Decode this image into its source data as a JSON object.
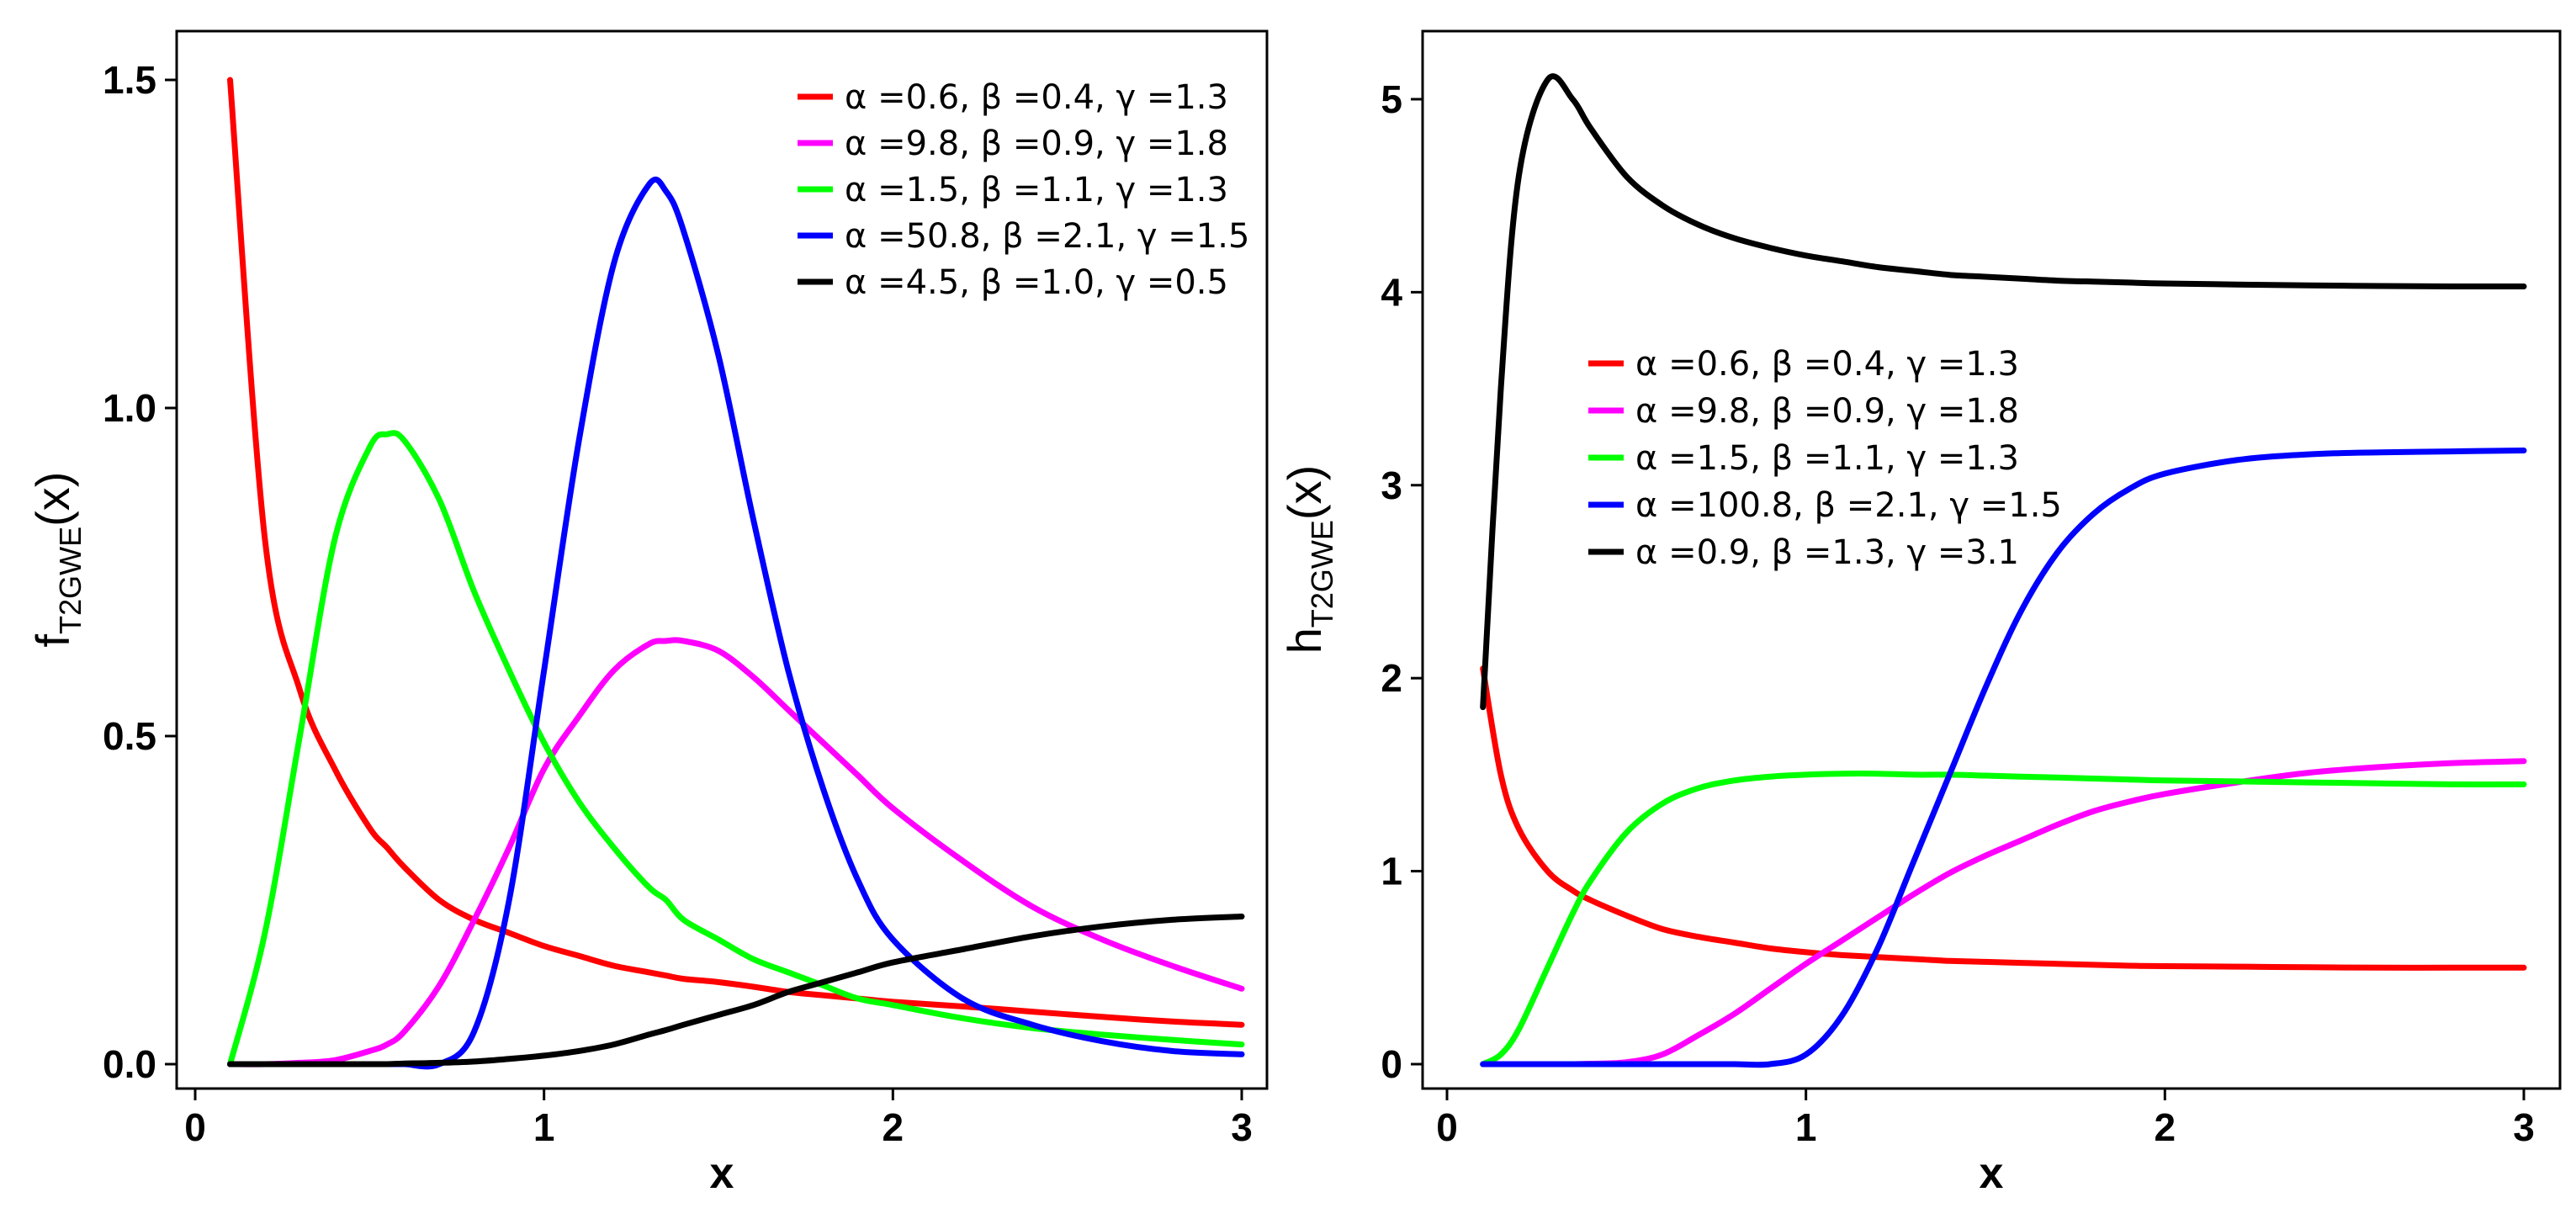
{
  "chart_data": [
    {
      "type": "line",
      "panel": "left",
      "xlabel": "x",
      "ylabel_main": "f",
      "ylabel_sub": "T2GWE",
      "ylabel_arg": "(x)",
      "xlim": [
        0,
        3
      ],
      "ylim": [
        0,
        1.5
      ],
      "xticks": [
        "0",
        "1",
        "2",
        "3"
      ],
      "yticks": [
        "0.0",
        "0.5",
        "1.0",
        "1.5"
      ],
      "grid": false,
      "legend_position": "top-right",
      "x": [
        0.1,
        0.2,
        0.3,
        0.4,
        0.5,
        0.55,
        0.6,
        0.7,
        0.8,
        0.9,
        1.0,
        1.1,
        1.2,
        1.3,
        1.35,
        1.4,
        1.5,
        1.6,
        1.7,
        1.8,
        1.9,
        2.0,
        2.2,
        2.4,
        2.6,
        2.8,
        3.0
      ],
      "series": [
        {
          "name": "α =0.6, β =0.4, γ =1.3",
          "color": "#ff0000",
          "values": [
            1.5,
            0.8,
            0.57,
            0.45,
            0.36,
            0.33,
            0.3,
            0.25,
            0.22,
            0.2,
            0.18,
            0.165,
            0.15,
            0.14,
            0.135,
            0.13,
            0.125,
            0.118,
            0.11,
            0.105,
            0.1,
            0.095,
            0.088,
            0.08,
            0.072,
            0.065,
            0.06
          ]
        },
        {
          "name": "α =9.8, β =0.9, γ =1.8",
          "color": "#ff00ff",
          "values": [
            0,
            0,
            0.002,
            0.006,
            0.02,
            0.03,
            0.05,
            0.12,
            0.22,
            0.33,
            0.45,
            0.53,
            0.6,
            0.64,
            0.645,
            0.645,
            0.63,
            0.59,
            0.54,
            0.49,
            0.44,
            0.39,
            0.31,
            0.24,
            0.19,
            0.15,
            0.115
          ]
        },
        {
          "name": "α =1.5, β =1.1, γ =1.3",
          "color": "#00ff00",
          "values": [
            0,
            0.2,
            0.5,
            0.8,
            0.94,
            0.96,
            0.95,
            0.86,
            0.72,
            0.6,
            0.49,
            0.4,
            0.33,
            0.27,
            0.25,
            0.22,
            0.19,
            0.16,
            0.14,
            0.12,
            0.1,
            0.09,
            0.07,
            0.055,
            0.045,
            0.037,
            0.03
          ]
        },
        {
          "name": "α =50.8, β =2.1, γ =1.5",
          "color": "#0000ff",
          "values": [
            0,
            0,
            0,
            0,
            0,
            0,
            0,
            0,
            0.05,
            0.25,
            0.6,
            0.95,
            1.22,
            1.34,
            1.33,
            1.27,
            1.08,
            0.83,
            0.6,
            0.42,
            0.28,
            0.19,
            0.1,
            0.06,
            0.035,
            0.02,
            0.015
          ]
        },
        {
          "name": "α =4.5, β =1.0, γ =0.5",
          "color": "#000000",
          "values": [
            0,
            0,
            0,
            0,
            0,
            0,
            0.001,
            0.002,
            0.004,
            0.008,
            0.013,
            0.02,
            0.03,
            0.045,
            0.052,
            0.06,
            0.075,
            0.09,
            0.11,
            0.125,
            0.14,
            0.155,
            0.175,
            0.195,
            0.21,
            0.22,
            0.225
          ]
        }
      ]
    },
    {
      "type": "line",
      "panel": "right",
      "xlabel": "x",
      "ylabel_main": "h",
      "ylabel_sub": "T2GWE",
      "ylabel_arg": "(x)",
      "xlim": [
        0,
        3
      ],
      "ylim": [
        0,
        5.1
      ],
      "xticks": [
        "0",
        "1",
        "2",
        "3"
      ],
      "yticks": [
        "0",
        "1",
        "2",
        "3",
        "4",
        "5"
      ],
      "grid": false,
      "legend_position": "middle-center",
      "x": [
        0.1,
        0.15,
        0.2,
        0.28,
        0.35,
        0.4,
        0.5,
        0.6,
        0.7,
        0.8,
        0.9,
        1.0,
        1.1,
        1.2,
        1.3,
        1.4,
        1.5,
        1.6,
        1.7,
        1.8,
        1.9,
        2.0,
        2.2,
        2.4,
        2.6,
        2.8,
        3.0
      ],
      "series": [
        {
          "name": "α =0.6, β =0.4, γ =1.3",
          "color": "#ff0000",
          "values": [
            2.05,
            1.5,
            1.22,
            1.0,
            0.9,
            0.85,
            0.77,
            0.7,
            0.66,
            0.63,
            0.6,
            0.58,
            0.565,
            0.555,
            0.545,
            0.535,
            0.53,
            0.525,
            0.52,
            0.515,
            0.51,
            0.508,
            0.505,
            0.502,
            0.5,
            0.5,
            0.5
          ]
        },
        {
          "name": "α =9.8, β =0.9, γ =1.8",
          "color": "#ff00ff",
          "values": [
            0,
            0,
            0,
            0,
            0,
            0.002,
            0.01,
            0.05,
            0.15,
            0.26,
            0.39,
            0.52,
            0.64,
            0.76,
            0.88,
            0.99,
            1.08,
            1.16,
            1.24,
            1.31,
            1.36,
            1.4,
            1.46,
            1.51,
            1.54,
            1.56,
            1.57
          ]
        },
        {
          "name": "α =1.5, β =1.1, γ =1.3",
          "color": "#00ff00",
          "values": [
            0,
            0.05,
            0.18,
            0.5,
            0.78,
            0.95,
            1.2,
            1.35,
            1.43,
            1.47,
            1.49,
            1.5,
            1.505,
            1.505,
            1.5,
            1.5,
            1.495,
            1.49,
            1.485,
            1.48,
            1.475,
            1.47,
            1.465,
            1.46,
            1.455,
            1.45,
            1.45
          ]
        },
        {
          "name": "α =100.8, β =2.1, γ =1.5",
          "color": "#0000ff",
          "values": [
            0,
            0,
            0,
            0,
            0,
            0,
            0,
            0,
            0,
            0,
            0,
            0.05,
            0.25,
            0.6,
            1.05,
            1.5,
            1.95,
            2.35,
            2.65,
            2.85,
            2.98,
            3.06,
            3.13,
            3.16,
            3.17,
            3.175,
            3.18
          ]
        },
        {
          "name": "α =0.9, β =1.3, γ =3.1",
          "color": "#000000",
          "values": [
            1.85,
            3.5,
            4.6,
            5.1,
            5.0,
            4.85,
            4.6,
            4.45,
            4.35,
            4.28,
            4.23,
            4.19,
            4.16,
            4.13,
            4.11,
            4.09,
            4.08,
            4.07,
            4.06,
            4.055,
            4.05,
            4.045,
            4.04,
            4.035,
            4.032,
            4.03,
            4.03
          ]
        }
      ]
    }
  ]
}
